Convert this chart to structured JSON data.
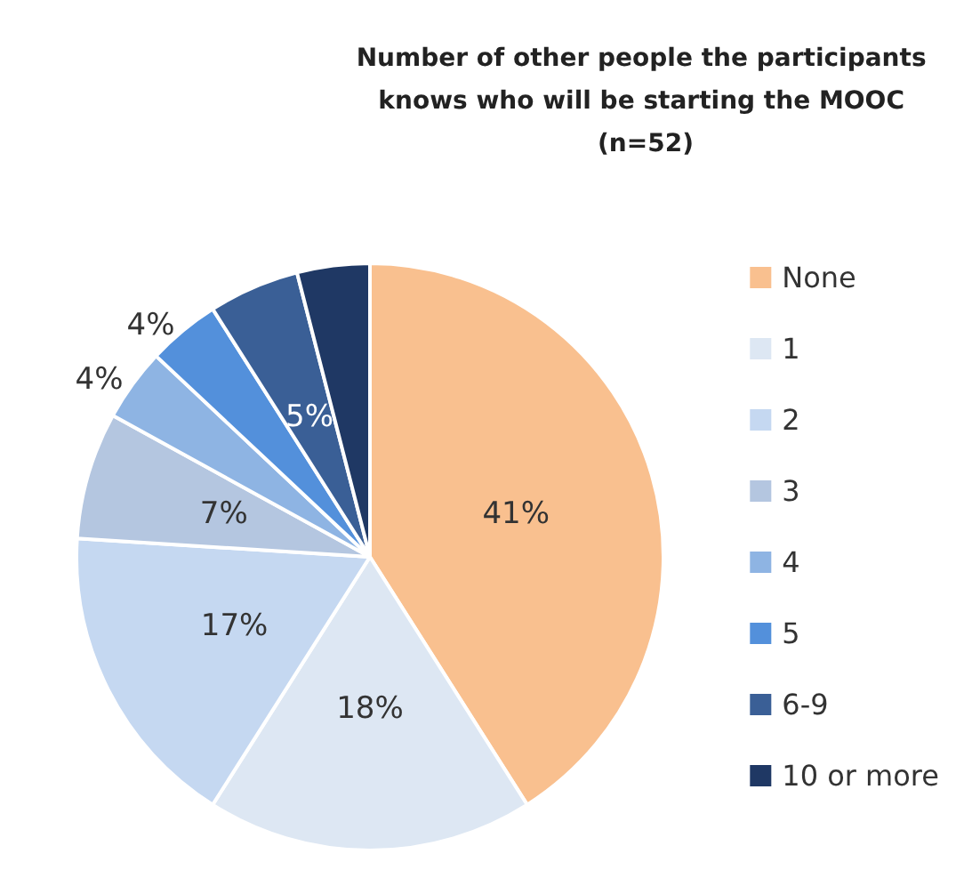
{
  "chart_data": {
    "type": "pie",
    "title": "Number of other people the participants knows who will be starting the MOOC (n=52)",
    "categories": [
      "None",
      "1",
      "2",
      "3",
      "4",
      "5",
      "6-9",
      "10 or more"
    ],
    "values": [
      41,
      18,
      17,
      7,
      4,
      4,
      5,
      4
    ],
    "value_labels": [
      "41%",
      "18%",
      "17%",
      "7%",
      "4%",
      "4%",
      "5%",
      null
    ],
    "colors": [
      "#f9c08f",
      "#dde7f3",
      "#c5d8f1",
      "#b4c6e0",
      "#8eb4e3",
      "#5390db",
      "#3a5f96",
      "#1f3864"
    ],
    "legend": "right"
  }
}
